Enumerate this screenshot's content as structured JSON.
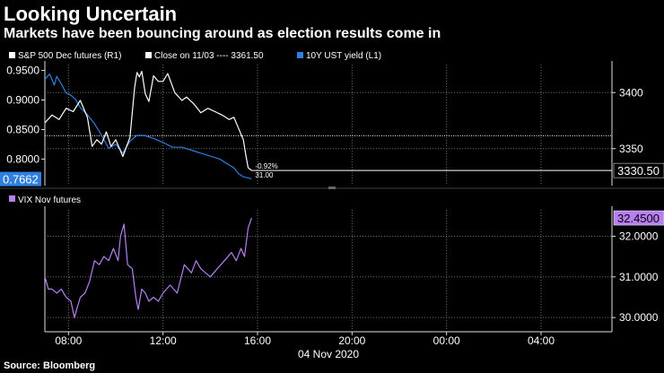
{
  "header": {
    "title": "Looking Uncertain",
    "subtitle": "Markets have been bouncing around as election results come in"
  },
  "footer": {
    "source": "Source: Bloomberg"
  },
  "colors": {
    "background": "#000000",
    "spx": "#ffffff",
    "ust": "#2e7fe0",
    "vix": "#b77ff0",
    "close_line": "#ffffff",
    "grid": "#707070",
    "axis": "#e0e0e0"
  },
  "chart_data": [
    {
      "type": "line",
      "panel": "top",
      "title": "",
      "legend": [
        {
          "label": "S&P 500 Dec futures (R1)",
          "color": "#ffffff"
        },
        {
          "label": "Close on 11/03 ---- 3361.50",
          "color": "#ffffff"
        },
        {
          "label": "10Y UST yield (L1)",
          "color": "#2e7fe0"
        }
      ],
      "left_axis": {
        "ylim": [
          0.755,
          0.96
        ],
        "ticks": [
          "0.9500",
          "0.9000",
          "0.8500",
          "0.8000"
        ],
        "tick_values": [
          0.95,
          0.9,
          0.85,
          0.8
        ]
      },
      "right_axis": {
        "ylim": [
          3317,
          3425
        ],
        "ticks": [
          "3400",
          "3350"
        ],
        "tick_values": [
          3400,
          3350
        ]
      },
      "x_hours": [
        7.0,
        31.0
      ],
      "series": [
        {
          "name": "S&P 500 Dec futures (R1)",
          "axis": "right",
          "color": "#ffffff",
          "x": [
            7.0,
            7.3,
            7.6,
            7.9,
            8.2,
            8.5,
            8.8,
            9.0,
            9.2,
            9.4,
            9.6,
            9.8,
            10.0,
            10.3,
            10.6,
            10.8,
            10.9,
            11.0,
            11.1,
            11.25,
            11.4,
            11.6,
            11.8,
            12.0,
            12.2,
            12.5,
            12.8,
            13.0,
            13.3,
            13.6,
            13.9,
            14.2,
            14.5,
            14.8,
            15.0,
            15.2,
            15.4,
            15.5,
            15.6,
            15.75
          ],
          "values": [
            3373,
            3380,
            3376,
            3386,
            3383,
            3393,
            3378,
            3352,
            3358,
            3354,
            3365,
            3352,
            3358,
            3343,
            3360,
            3405,
            3418,
            3414,
            3419,
            3399,
            3392,
            3415,
            3410,
            3410,
            3417,
            3400,
            3393,
            3396,
            3390,
            3382,
            3386,
            3383,
            3380,
            3376,
            3378,
            3368,
            3358,
            3345,
            3333,
            3330.5
          ]
        },
        {
          "name": "Close on 11/03",
          "axis": "right",
          "color": "#ffffff",
          "style": "dotted",
          "value": 3361.5
        },
        {
          "name": "10Y UST yield (L1)",
          "axis": "left",
          "color": "#2e7fe0",
          "x": [
            7.0,
            7.2,
            7.4,
            7.5,
            7.7,
            7.9,
            8.1,
            8.3,
            8.5,
            8.8,
            9.1,
            9.4,
            9.7,
            10.0,
            10.3,
            10.6,
            10.9,
            11.2,
            11.6,
            12.0,
            12.4,
            12.8,
            13.2,
            13.6,
            14.0,
            14.4,
            14.8,
            15.0,
            15.2,
            15.4,
            15.6,
            15.75
          ],
          "values": [
            0.935,
            0.944,
            0.925,
            0.94,
            0.927,
            0.912,
            0.908,
            0.901,
            0.887,
            0.875,
            0.86,
            0.84,
            0.818,
            0.825,
            0.81,
            0.83,
            0.84,
            0.84,
            0.835,
            0.828,
            0.82,
            0.82,
            0.815,
            0.81,
            0.805,
            0.8,
            0.79,
            0.785,
            0.775,
            0.77,
            0.768,
            0.7662
          ]
        }
      ],
      "annotations": [
        "-0.92%",
        "31.00"
      ],
      "last_value_labels": [
        {
          "label": "0.7662",
          "axis": "left",
          "value": 0.7662,
          "color": "#2e7fe0"
        },
        {
          "label": "3330.50",
          "axis": "right",
          "value": 3330.5,
          "color": "#ffffff"
        }
      ]
    },
    {
      "type": "line",
      "panel": "bottom",
      "legend": [
        {
          "label": "VIX Nov futures",
          "color": "#b77ff0"
        }
      ],
      "right_axis": {
        "ylim": [
          29.65,
          32.65
        ],
        "ticks": [
          "32.0000",
          "31.0000",
          "30.0000"
        ],
        "tick_values": [
          32.0,
          31.0,
          30.0
        ]
      },
      "x_hours": [
        7.0,
        31.0
      ],
      "xticks": [
        "08:00",
        "12:00",
        "16:00",
        "20:00",
        "00:00",
        "04:00"
      ],
      "xtick_hours": [
        8,
        12,
        16,
        20,
        24,
        28
      ],
      "xlabel": "04 Nov 2020",
      "series": [
        {
          "name": "VIX Nov futures",
          "axis": "right",
          "color": "#b77ff0",
          "x": [
            7.0,
            7.15,
            7.3,
            7.5,
            7.7,
            7.9,
            8.1,
            8.25,
            8.35,
            8.5,
            8.7,
            8.9,
            9.1,
            9.3,
            9.5,
            9.7,
            9.9,
            10.1,
            10.2,
            10.35,
            10.5,
            10.7,
            10.85,
            10.95,
            11.1,
            11.25,
            11.4,
            11.6,
            11.8,
            12.0,
            12.3,
            12.6,
            12.9,
            13.2,
            13.4,
            13.6,
            13.8,
            14.0,
            14.3,
            14.6,
            14.9,
            15.1,
            15.3,
            15.45,
            15.6,
            15.75
          ],
          "values": [
            31.0,
            30.7,
            30.7,
            30.6,
            30.7,
            30.5,
            30.4,
            30.0,
            30.2,
            30.5,
            30.6,
            30.9,
            31.4,
            31.3,
            31.5,
            31.4,
            31.7,
            31.4,
            32.0,
            32.3,
            31.3,
            31.2,
            30.5,
            30.2,
            30.7,
            30.6,
            30.4,
            30.5,
            30.4,
            30.6,
            30.8,
            30.6,
            31.3,
            31.1,
            31.4,
            31.2,
            31.1,
            31.0,
            31.2,
            31.4,
            31.6,
            31.4,
            31.7,
            31.5,
            32.2,
            32.45
          ]
        }
      ],
      "last_value_labels": [
        {
          "label": "32.4500",
          "axis": "right",
          "value": 32.45,
          "color": "#b77ff0"
        }
      ]
    }
  ]
}
